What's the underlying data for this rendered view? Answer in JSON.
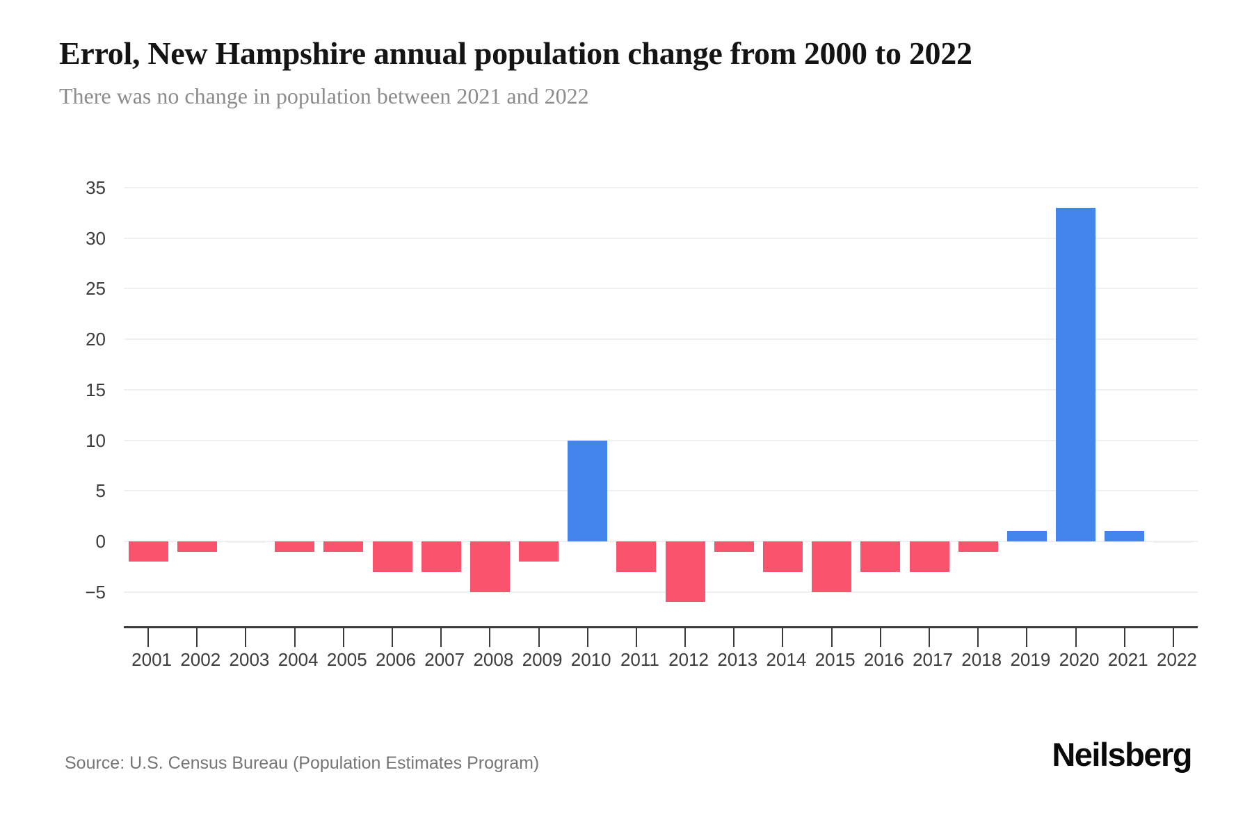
{
  "header": {
    "title": "Errol, New Hampshire annual population change from 2000 to 2022",
    "subtitle": "There was no change in population between 2021 and 2022"
  },
  "footer": {
    "source": "Source: U.S. Census Bureau (Population Estimates Program)",
    "brand": "Neilsberg"
  },
  "chart_data": {
    "type": "bar",
    "title": "Errol, New Hampshire annual population change from 2000 to 2022",
    "subtitle": "There was no change in population between 2021 and 2022",
    "categories": [
      "2001",
      "2002",
      "2003",
      "2004",
      "2005",
      "2006",
      "2007",
      "2008",
      "2009",
      "2010",
      "2011",
      "2012",
      "2013",
      "2014",
      "2015",
      "2016",
      "2017",
      "2018",
      "2019",
      "2020",
      "2021",
      "2022"
    ],
    "values": [
      -2,
      -1,
      0,
      -1,
      -1,
      -3,
      -3,
      -5,
      -2,
      10,
      -3,
      -6,
      -1,
      -3,
      -5,
      -3,
      -3,
      -1,
      1,
      33,
      1,
      0
    ],
    "xlabel": "",
    "ylabel": "",
    "ylim": [
      -5,
      35
    ],
    "yticks": [
      35,
      30,
      25,
      20,
      15,
      10,
      5,
      0,
      -5
    ],
    "grid": true,
    "legend": false,
    "colors": {
      "positive": "#4485ED",
      "negative": "#F9536E",
      "zero": "#EFEFEF"
    }
  }
}
